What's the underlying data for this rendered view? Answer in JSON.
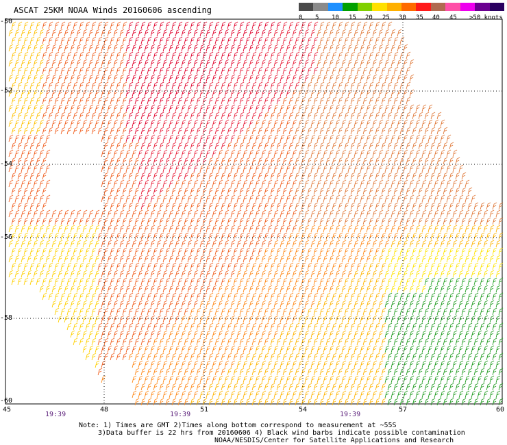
{
  "title": "ASCAT 25KM NOAA Winds 20160606 ascending",
  "legend": {
    "colors": [
      "#4a4a4a",
      "#8a8a8a",
      "#1e90ff",
      "#00a000",
      "#7fd000",
      "#ffe000",
      "#ffb000",
      "#ff6a00",
      "#ff1a1a",
      "#b06a50",
      "#ff4fa8",
      "#ee00ee",
      "#6a0090",
      "#2a0060"
    ],
    "labels": [
      "0",
      "5",
      "10",
      "15",
      "20",
      "25",
      "30",
      "35",
      "40",
      "45",
      ">50 knots"
    ]
  },
  "axes": {
    "lat_labels": [
      "-50",
      "-52",
      "-54",
      "-56",
      "-58",
      "-60"
    ],
    "lon_labels": [
      "45",
      "48",
      "51",
      "54",
      "57",
      "60"
    ]
  },
  "times": [
    "19:39",
    "19:39",
    "19:39"
  ],
  "notes": [
    "Note: 1) Times are GMT 2)Times along bottom correspond to measurement at ~55S",
    "3)Data buffer is 22 hrs from 20160606 4) Black wind barbs indicate possible contamination",
    "NOAA/NESDIS/Center for Satellite Applications and Research"
  ]
}
